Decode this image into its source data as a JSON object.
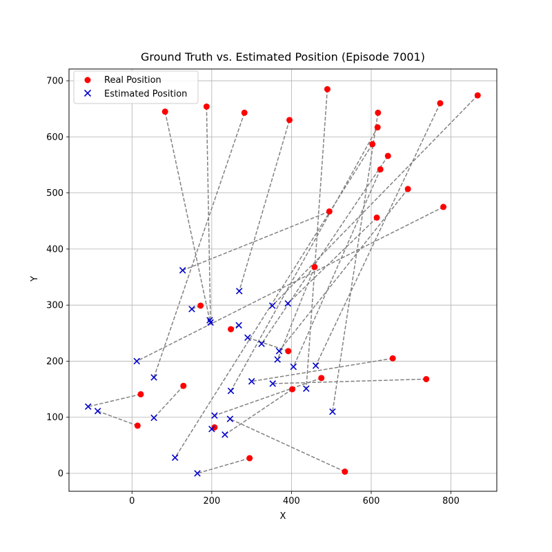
{
  "chart_data": {
    "type": "scatter",
    "title": "Ground Truth vs. Estimated Position (Episode 7001)",
    "xlabel": "X",
    "ylabel": "Y",
    "xlim": [
      -158,
      915
    ],
    "ylim": [
      -32,
      721
    ],
    "xticks": [
      0,
      200,
      400,
      600,
      800
    ],
    "yticks": [
      0,
      100,
      200,
      300,
      400,
      500,
      600,
      700
    ],
    "grid": true,
    "legend_position": "top-left",
    "colors": {
      "real": "#ff0000",
      "estimated": "#0000cc",
      "connector": "#808080"
    },
    "series": [
      {
        "name": "Real Position",
        "marker": "circle"
      },
      {
        "name": "Estimated Position",
        "marker": "x"
      }
    ],
    "pairs": [
      {
        "real": [
          83,
          645
        ],
        "est": [
          195,
          273
        ]
      },
      {
        "real": [
          187,
          654
        ],
        "est": [
          197,
          269
        ]
      },
      {
        "real": [
          282,
          643
        ],
        "est": [
          55,
          171
        ]
      },
      {
        "real": [
          395,
          630
        ],
        "est": [
          269,
          325
        ]
      },
      {
        "real": [
          490,
          685
        ],
        "est": [
          437,
          151
        ]
      },
      {
        "real": [
          617,
          643
        ],
        "est": [
          503,
          110
        ]
      },
      {
        "real": [
          616,
          617
        ],
        "est": [
          248,
          147
        ]
      },
      {
        "real": [
          603,
          587
        ],
        "est": [
          108,
          28
        ]
      },
      {
        "real": [
          642,
          566
        ],
        "est": [
          325,
          231
        ]
      },
      {
        "real": [
          623,
          542
        ],
        "est": [
          405,
          190
        ]
      },
      {
        "real": [
          773,
          660
        ],
        "est": [
          461,
          192
        ]
      },
      {
        "real": [
          867,
          674
        ],
        "est": [
          352,
          299
        ]
      },
      {
        "real": [
          692,
          507
        ],
        "est": [
          369,
          218
        ]
      },
      {
        "real": [
          495,
          467
        ],
        "est": [
          127,
          362
        ]
      },
      {
        "real": [
          614,
          456
        ],
        "est": [
          391,
          303
        ]
      },
      {
        "real": [
          781,
          475
        ],
        "est": [
          12,
          200
        ]
      },
      {
        "real": [
          458,
          368
        ],
        "est": [
          365,
          203
        ]
      },
      {
        "real": [
          172,
          299
        ],
        "est": [
          150,
          293
        ]
      },
      {
        "real": [
          248,
          257
        ],
        "est": [
          268,
          264
        ]
      },
      {
        "real": [
          392,
          218
        ],
        "est": [
          290,
          242
        ]
      },
      {
        "real": [
          654,
          205
        ],
        "est": [
          300,
          164
        ]
      },
      {
        "real": [
          738,
          168
        ],
        "est": [
          353,
          160
        ]
      },
      {
        "real": [
          475,
          170
        ],
        "est": [
          207,
          103
        ]
      },
      {
        "real": [
          402,
          150
        ],
        "est": [
          233,
          69
        ]
      },
      {
        "real": [
          129,
          156
        ],
        "est": [
          55,
          99
        ]
      },
      {
        "real": [
          22,
          141
        ],
        "est": [
          -110,
          119
        ]
      },
      {
        "real": [
          14,
          85
        ],
        "est": [
          -86,
          111
        ]
      },
      {
        "real": [
          207,
          82
        ],
        "est": [
          200,
          79
        ]
      },
      {
        "real": [
          534,
          3
        ],
        "est": [
          246,
          97
        ]
      },
      {
        "real": [
          295,
          27
        ],
        "est": [
          164,
          0
        ]
      }
    ]
  }
}
